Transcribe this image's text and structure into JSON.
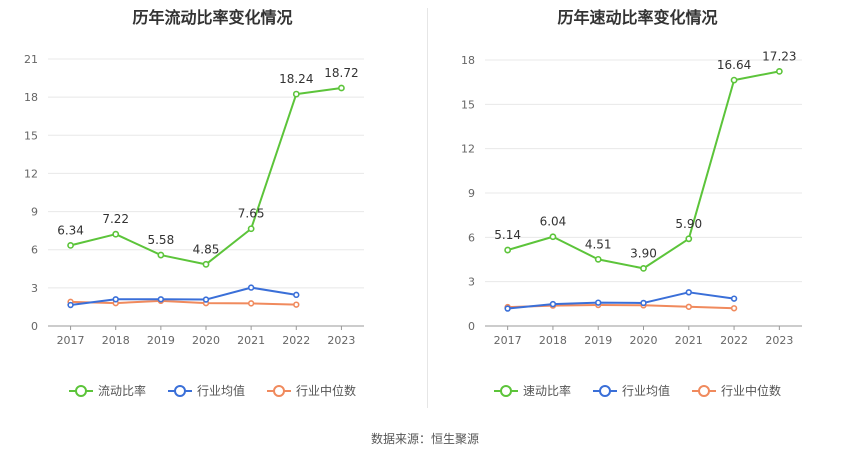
{
  "source": "数据来源：恒生聚源",
  "colors": {
    "main": "#5cc43a",
    "avg": "#3a6fd8",
    "median": "#f08a5d"
  },
  "chart_data": [
    {
      "type": "line",
      "title": "历年流动比率变化情况",
      "categories": [
        "2017",
        "2018",
        "2019",
        "2020",
        "2021",
        "2022",
        "2023"
      ],
      "ylim": [
        0,
        21
      ],
      "yticks": [
        "0",
        "3",
        "6",
        "9",
        "12",
        "15",
        "18",
        "21"
      ],
      "grid": true,
      "legend_position": "bottom",
      "series": [
        {
          "name": "流动比率",
          "color": "#5cc43a",
          "values": [
            6.34,
            7.22,
            5.58,
            4.85,
            7.65,
            18.24,
            18.72
          ],
          "labels": [
            "6.34",
            "7.22",
            "5.58",
            "4.85",
            "7.65",
            "18.24",
            "18.72"
          ]
        },
        {
          "name": "行业均值",
          "color": "#3a6fd8",
          "values": [
            1.65,
            2.1,
            2.1,
            2.08,
            3.02,
            2.45,
            null
          ]
        },
        {
          "name": "行业中位数",
          "color": "#f08a5d",
          "values": [
            1.9,
            1.8,
            1.98,
            1.8,
            1.78,
            1.68,
            null
          ]
        }
      ]
    },
    {
      "type": "line",
      "title": "历年速动比率变化情况",
      "categories": [
        "2017",
        "2018",
        "2019",
        "2020",
        "2021",
        "2022",
        "2023"
      ],
      "ylim": [
        0,
        18
      ],
      "yticks": [
        "0",
        "3",
        "6",
        "9",
        "12",
        "15",
        "18"
      ],
      "grid": true,
      "legend_position": "bottom",
      "series": [
        {
          "name": "速动比率",
          "color": "#5cc43a",
          "values": [
            5.14,
            6.04,
            4.51,
            3.9,
            5.9,
            16.64,
            17.23
          ],
          "labels": [
            "5.14",
            "6.04",
            "4.51",
            "3.90",
            "5.90",
            "16.64",
            "17.23"
          ]
        },
        {
          "name": "行业均值",
          "color": "#3a6fd8",
          "values": [
            1.18,
            1.48,
            1.58,
            1.56,
            2.28,
            1.85,
            null
          ]
        },
        {
          "name": "行业中位数",
          "color": "#f08a5d",
          "values": [
            1.28,
            1.38,
            1.42,
            1.4,
            1.3,
            1.2,
            null
          ]
        }
      ]
    }
  ]
}
